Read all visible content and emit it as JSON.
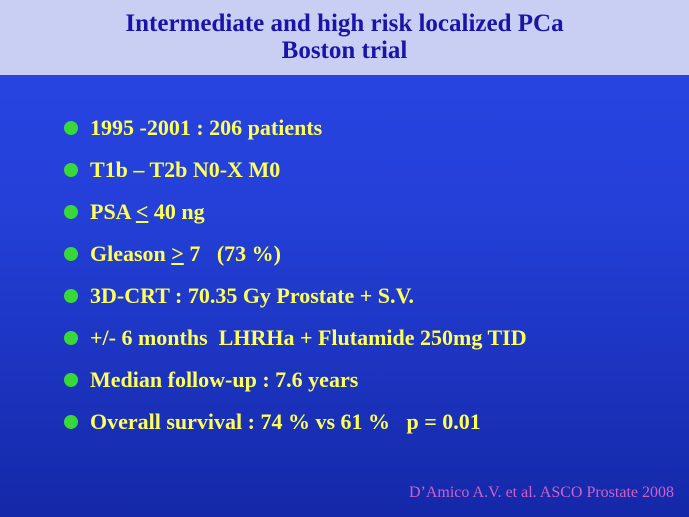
{
  "header": {
    "title_line1": "Intermediate and high risk localized PCa",
    "title_line2": "Boston trial"
  },
  "bullets": [
    {
      "text": "1995 -2001 : 206 patients"
    },
    {
      "text": "T1b – T2b N0-X M0"
    },
    {
      "text": "PSA ",
      "underlined": "<",
      "rest": " 40 ng"
    },
    {
      "text": "Gleason ",
      "underlined": ">",
      "rest": " 7   (73 %)"
    },
    {
      "text": "3D-CRT : 70.35 Gy Prostate + S.V."
    },
    {
      "text": "+/- 6 months  LHRHa + Flutamide 250mg TID"
    },
    {
      "text": "Median follow-up : 7.6 years"
    },
    {
      "text": "Overall survival : 74 % vs 61 %   p = 0.01"
    }
  ],
  "footer": {
    "citation": "D’Amico A.V. et al. ASCO Prostate 2008"
  }
}
